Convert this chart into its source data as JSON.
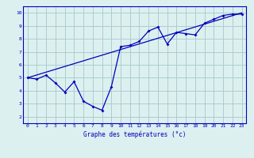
{
  "xlabel": "Graphe des températures (°c)",
  "bg_color": "#ddf0f0",
  "grid_color": "#aacece",
  "line_color": "#0000bb",
  "xlim": [
    -0.5,
    23.5
  ],
  "ylim": [
    1.5,
    10.5
  ],
  "yticks": [
    2,
    3,
    4,
    5,
    6,
    7,
    8,
    9,
    10
  ],
  "xticks": [
    0,
    1,
    2,
    3,
    4,
    5,
    6,
    7,
    8,
    9,
    10,
    11,
    12,
    13,
    14,
    15,
    16,
    17,
    18,
    19,
    20,
    21,
    22,
    23
  ],
  "data_x": [
    0,
    1,
    2,
    3,
    4,
    5,
    6,
    7,
    8,
    9,
    10,
    11,
    12,
    13,
    14,
    15,
    16,
    17,
    18,
    19,
    20,
    21,
    22,
    23
  ],
  "data_y": [
    5.0,
    4.9,
    5.2,
    4.6,
    3.9,
    4.7,
    3.2,
    2.8,
    2.5,
    4.3,
    7.4,
    7.5,
    7.8,
    8.6,
    8.9,
    7.6,
    8.5,
    8.4,
    8.3,
    9.2,
    9.5,
    9.8,
    9.9,
    9.9
  ],
  "trend_x": [
    0,
    23
  ],
  "trend_y": [
    5.0,
    10.0
  ]
}
